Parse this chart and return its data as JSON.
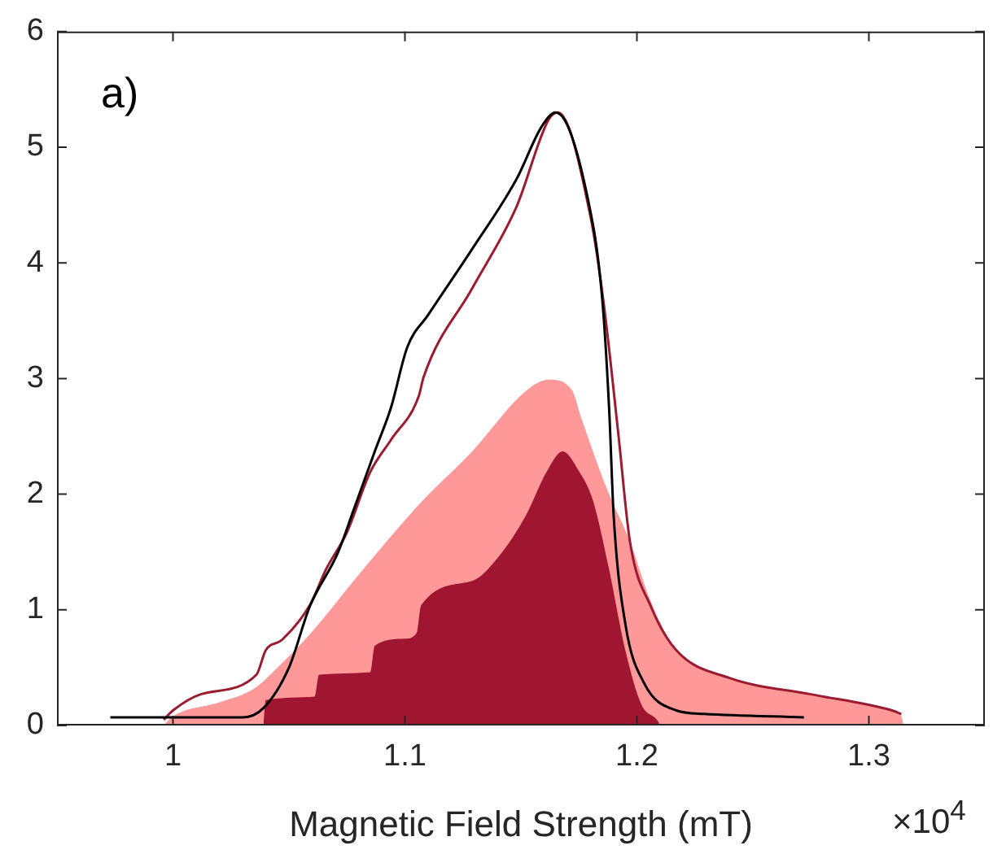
{
  "chart_data": {
    "type": "area",
    "xlabel": "Magnetic Field Strength (mT)",
    "annotations": [
      "a)",
      "×10$^{4}$"
    ],
    "xlim": [
      0.95,
      1.35
    ],
    "xticks": [
      1,
      1.1,
      1.2,
      1.3
    ],
    "ylim": [
      0,
      6
    ],
    "yticks": [
      0,
      1,
      2,
      3,
      4,
      5,
      6
    ],
    "series": [
      {
        "color": "#ff9999",
        "x": [
          0.996,
          1.0,
          1.02,
          1.035,
          1.045,
          1.059,
          1.082,
          1.106,
          1.129,
          1.152,
          1.162,
          1.172,
          1.176,
          1.187,
          1.197,
          1.206,
          1.217,
          1.24,
          1.275,
          1.31,
          1.314,
          1.315
        ],
        "values": [
          0,
          0.08,
          0.2,
          0.32,
          0.5,
          0.79,
          1.35,
          1.91,
          2.37,
          2.89,
          2.99,
          2.9,
          2.66,
          2.05,
          1.59,
          1.07,
          0.65,
          0.41,
          0.27,
          0.13,
          0.08,
          0
        ]
      },
      {
        "color": "#a01530",
        "x": [
          1.039,
          1.04,
          1.061,
          1.063,
          1.085,
          1.087,
          1.1,
          1.105,
          1.107,
          1.129,
          1.14,
          1.152,
          1.161,
          1.168,
          1.175,
          1.181,
          1.188,
          1.195,
          1.202,
          1.209,
          1.21
        ],
        "values": [
          0,
          0.22,
          0.25,
          0.44,
          0.46,
          0.69,
          0.75,
          0.8,
          1.04,
          1.25,
          1.45,
          1.81,
          2.19,
          2.37,
          2.2,
          1.95,
          1.35,
          0.65,
          0.18,
          0.04,
          0
        ]
      },
      {
        "type": "line",
        "color": "#9b1b30",
        "x": [
          0.996,
          1.0,
          1.012,
          1.036,
          1.04,
          1.047,
          1.059,
          1.066,
          1.075,
          1.085,
          1.094,
          1.106,
          1.108,
          1.129,
          1.148,
          1.162,
          1.166,
          1.18,
          1.186,
          1.192,
          1.197,
          1.206,
          1.217,
          1.24,
          1.275,
          1.31,
          1.314
        ],
        "values": [
          0.05,
          0.13,
          0.27,
          0.44,
          0.65,
          0.74,
          1.04,
          1.35,
          1.67,
          2.19,
          2.47,
          2.85,
          3.01,
          3.78,
          4.48,
          5.24,
          5.3,
          4.4,
          3.6,
          2.52,
          1.59,
          1.03,
          0.65,
          0.41,
          0.27,
          0.13,
          0.1
        ]
      },
      {
        "type": "line",
        "color": "#000000",
        "x": [
          0.973,
          1.0,
          1.03,
          1.039,
          1.05,
          1.059,
          1.071,
          1.078,
          1.087,
          1.094,
          1.101,
          1.11,
          1.129,
          1.148,
          1.159,
          1.165,
          1.179,
          1.185,
          1.188,
          1.19,
          1.195,
          1.203,
          1.217,
          1.229,
          1.272
        ],
        "values": [
          0.07,
          0.07,
          0.07,
          0.15,
          0.5,
          1.03,
          1.49,
          1.87,
          2.37,
          2.75,
          3.27,
          3.55,
          4.12,
          4.72,
          5.18,
          5.3,
          4.54,
          3.7,
          2.75,
          1.81,
          0.88,
          0.37,
          0.13,
          0.1,
          0.07
        ]
      }
    ]
  }
}
